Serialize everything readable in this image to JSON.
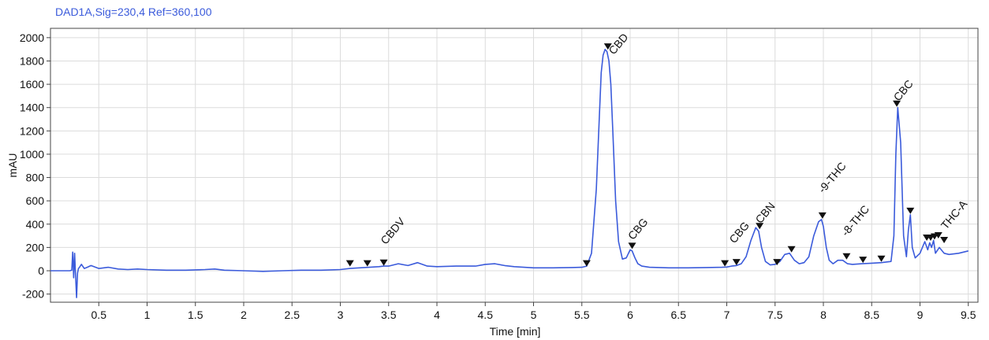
{
  "chart_data": {
    "type": "line",
    "signal_title": "DAD1A,Sig=230,4  Ref=360,100",
    "xlabel": "Time [min]",
    "ylabel": "mAU",
    "xlim": [
      0,
      9.6
    ],
    "ylim": [
      -270,
      2080
    ],
    "grid": true,
    "x_ticks": [
      0.5,
      1,
      1.5,
      2,
      2.5,
      3,
      3.5,
      4,
      4.5,
      5,
      5.5,
      6,
      6.5,
      7,
      7.5,
      8,
      8.5,
      9,
      9.5
    ],
    "x_tick_labels": [
      "0.5",
      "1",
      "1.5",
      "2",
      "2.5",
      "3",
      "3.5",
      "4",
      "4.5",
      "5",
      "5.5",
      "6",
      "6.5",
      "7",
      "7.5",
      "8",
      "8.5",
      "9",
      "9.5"
    ],
    "y_ticks": [
      -200,
      0,
      200,
      400,
      600,
      800,
      1000,
      1200,
      1400,
      1600,
      1800,
      2000
    ],
    "y_tick_labels": [
      "-200",
      "0",
      "200",
      "400",
      "600",
      "800",
      "1000",
      "1200",
      "1400",
      "1600",
      "1800",
      "2000"
    ],
    "colors": {
      "trace": "#3b5bdb",
      "title": "#3b5bdb",
      "grid": "#dcdcdc",
      "axis": "#444444",
      "marker": "#111111"
    },
    "series": [
      {
        "x": [
          0.0,
          0.2,
          0.22,
          0.23,
          0.24,
          0.25,
          0.26,
          0.27,
          0.28,
          0.29,
          0.3,
          0.32,
          0.35,
          0.38,
          0.42,
          0.5,
          0.6,
          0.7,
          0.8,
          0.9,
          1.0,
          1.2,
          1.4,
          1.6,
          1.7,
          1.8,
          2.0,
          2.2,
          2.4,
          2.6,
          2.8,
          3.0,
          3.1,
          3.2,
          3.3,
          3.4,
          3.45,
          3.5,
          3.6,
          3.7,
          3.8,
          3.9,
          4.0,
          4.2,
          4.4,
          4.5,
          4.6,
          4.7,
          4.8,
          5.0,
          5.2,
          5.4,
          5.5,
          5.55,
          5.6,
          5.65,
          5.68,
          5.7,
          5.72,
          5.74,
          5.76,
          5.78,
          5.8,
          5.82,
          5.85,
          5.88,
          5.92,
          5.96,
          6.0,
          6.02,
          6.05,
          6.08,
          6.12,
          6.2,
          6.4,
          6.6,
          6.8,
          6.95,
          7.0,
          7.05,
          7.1,
          7.15,
          7.2,
          7.25,
          7.3,
          7.33,
          7.36,
          7.4,
          7.45,
          7.5,
          7.55,
          7.6,
          7.65,
          7.7,
          7.75,
          7.8,
          7.85,
          7.9,
          7.95,
          7.98,
          8.0,
          8.03,
          8.06,
          8.1,
          8.15,
          8.2,
          8.25,
          8.3,
          8.4,
          8.5,
          8.6,
          8.7,
          8.73,
          8.75,
          8.77,
          8.8,
          8.83,
          8.86,
          8.88,
          8.9,
          8.92,
          8.95,
          9.0,
          9.05,
          9.08,
          9.1,
          9.12,
          9.14,
          9.16,
          9.2,
          9.25,
          9.3,
          9.4,
          9.5
        ],
        "y": [
          0,
          0,
          5,
          160,
          -60,
          150,
          -40,
          -230,
          -20,
          20,
          30,
          55,
          20,
          30,
          45,
          20,
          30,
          15,
          10,
          15,
          10,
          5,
          5,
          10,
          15,
          5,
          0,
          -5,
          0,
          5,
          5,
          10,
          20,
          25,
          30,
          35,
          40,
          40,
          60,
          45,
          70,
          40,
          35,
          40,
          40,
          55,
          60,
          45,
          35,
          25,
          25,
          28,
          30,
          40,
          150,
          700,
          1300,
          1700,
          1850,
          1900,
          1880,
          1800,
          1600,
          1200,
          600,
          250,
          100,
          110,
          180,
          170,
          110,
          60,
          40,
          30,
          25,
          25,
          28,
          30,
          32,
          40,
          45,
          60,
          120,
          260,
          370,
          340,
          200,
          80,
          50,
          55,
          80,
          140,
          150,
          90,
          60,
          70,
          120,
          300,
          420,
          440,
          380,
          200,
          90,
          60,
          90,
          90,
          60,
          55,
          60,
          65,
          70,
          80,
          300,
          1000,
          1400,
          1100,
          300,
          120,
          350,
          480,
          200,
          110,
          150,
          250,
          180,
          240,
          200,
          260,
          150,
          200,
          150,
          140,
          150,
          170
        ]
      }
    ],
    "peak_markers": [
      {
        "x": 3.1,
        "y": 30
      },
      {
        "x": 3.28,
        "y": 30
      },
      {
        "x": 3.45,
        "y": 35
      },
      {
        "x": 5.55,
        "y": 30
      },
      {
        "x": 5.77,
        "y": 1890
      },
      {
        "x": 6.02,
        "y": 180
      },
      {
        "x": 6.98,
        "y": 30
      },
      {
        "x": 7.1,
        "y": 40
      },
      {
        "x": 7.34,
        "y": 350
      },
      {
        "x": 7.52,
        "y": 40
      },
      {
        "x": 7.67,
        "y": 150
      },
      {
        "x": 7.99,
        "y": 440
      },
      {
        "x": 8.24,
        "y": 90
      },
      {
        "x": 8.41,
        "y": 60
      },
      {
        "x": 8.6,
        "y": 70
      },
      {
        "x": 8.76,
        "y": 1400
      },
      {
        "x": 8.9,
        "y": 480
      },
      {
        "x": 9.07,
        "y": 250
      },
      {
        "x": 9.11,
        "y": 250
      },
      {
        "x": 9.15,
        "y": 260
      },
      {
        "x": 9.19,
        "y": 270
      },
      {
        "x": 9.25,
        "y": 230
      }
    ],
    "peak_labels": [
      {
        "text": "CBDV",
        "x": 3.47,
        "y": 220
      },
      {
        "text": "CBD",
        "x": 5.83,
        "y": 1850
      },
      {
        "text": "CBG",
        "x": 6.03,
        "y": 260
      },
      {
        "text": "CBG",
        "x": 7.08,
        "y": 230
      },
      {
        "text": "CBN",
        "x": 7.35,
        "y": 400
      },
      {
        "text": "-9-THC",
        "x": 8.0,
        "y": 660
      },
      {
        "text": "-8-THC",
        "x": 8.24,
        "y": 290
      },
      {
        "text": "CBC",
        "x": 8.78,
        "y": 1450
      },
      {
        "text": "THC-A",
        "x": 9.27,
        "y": 350
      }
    ]
  }
}
